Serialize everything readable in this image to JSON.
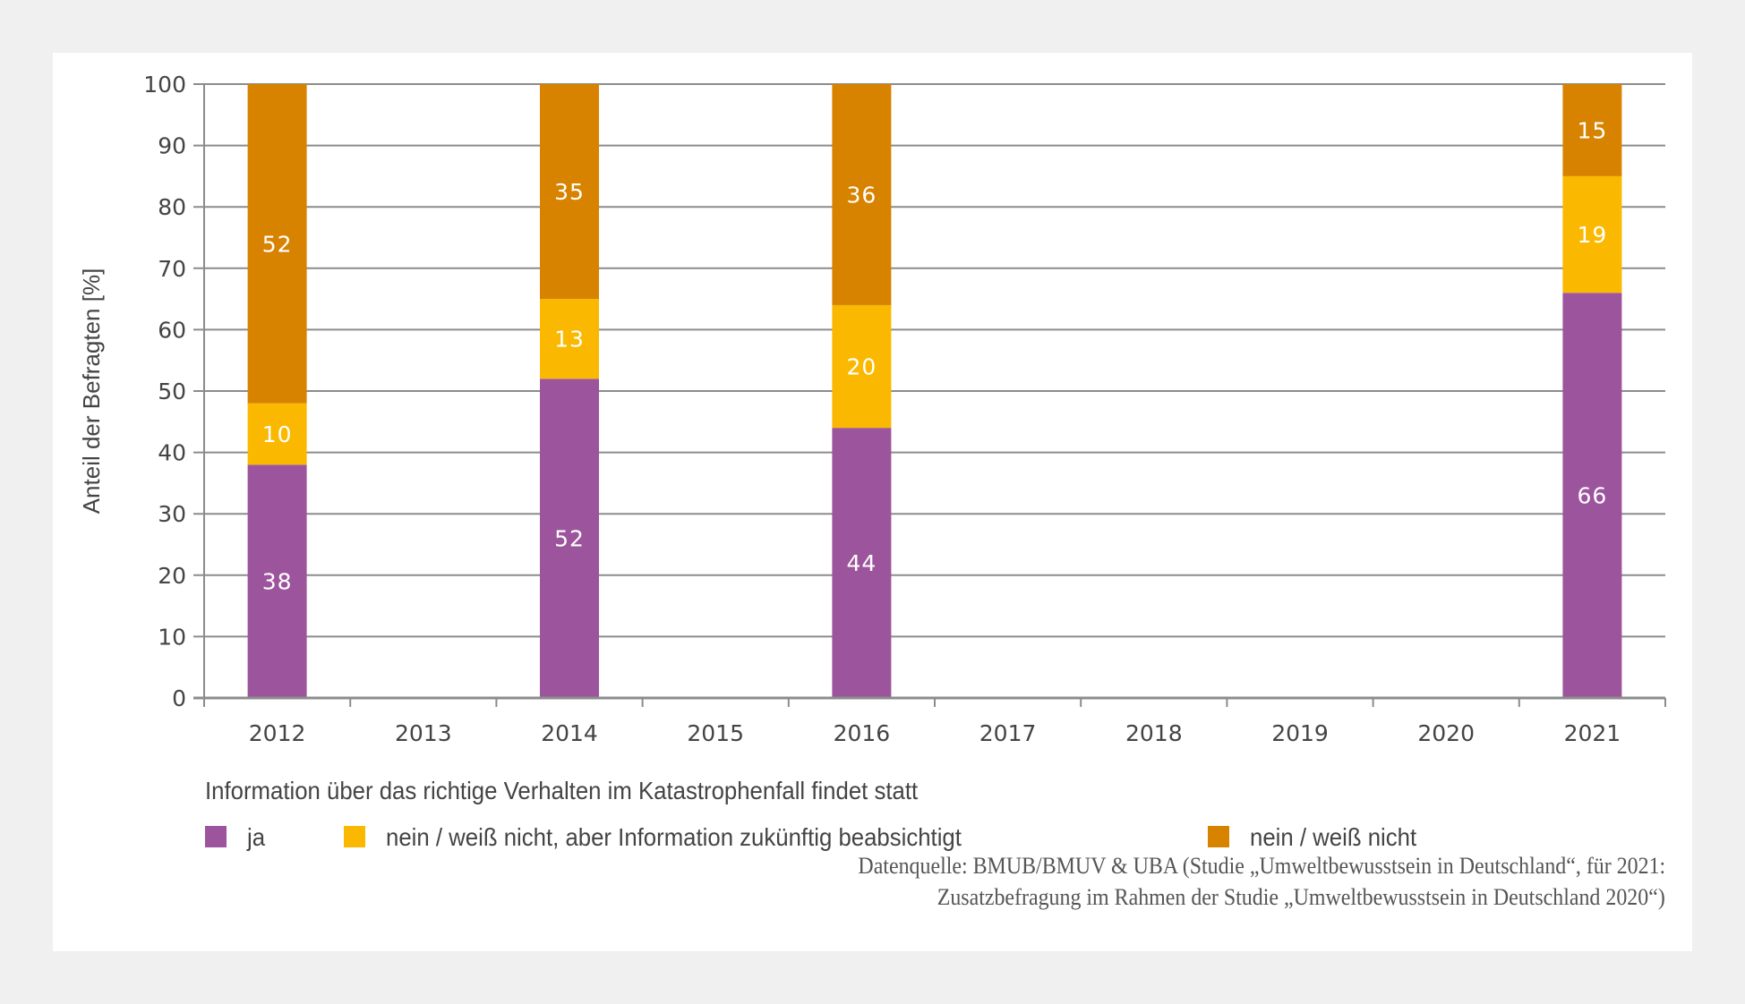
{
  "chart_data": {
    "type": "bar",
    "stacked": true,
    "title": "",
    "xlabel": "",
    "ylabel": "Anteil der Befragten [%]",
    "ylim": [
      0,
      100
    ],
    "yticks": [
      0,
      10,
      20,
      30,
      40,
      50,
      60,
      70,
      80,
      90,
      100
    ],
    "grid": true,
    "categories": [
      "2012",
      "2013",
      "2014",
      "2015",
      "2016",
      "2017",
      "2018",
      "2019",
      "2020",
      "2021"
    ],
    "series": [
      {
        "name": "ja",
        "color": "#9c559c",
        "values": [
          38,
          null,
          52,
          null,
          44,
          null,
          null,
          null,
          null,
          66
        ]
      },
      {
        "name": "nein / weiß nicht, aber Information zukünftig beabsichtigt",
        "color": "#fab800",
        "values": [
          10,
          null,
          13,
          null,
          20,
          null,
          null,
          null,
          null,
          19
        ]
      },
      {
        "name": "nein / weiß nicht",
        "color": "#d78300",
        "values": [
          52,
          null,
          35,
          null,
          36,
          null,
          null,
          null,
          null,
          15
        ]
      }
    ],
    "legend_title": "Information über das richtige Verhalten im Katastrophenfall findet statt",
    "legend_position": "bottom-left",
    "source_lines": [
      "Datenquelle: BMUB/BMUV & UBA (Studie „Umweltbewusstsein in Deutschland“, für 2021:",
      "Zusatzbefragung im Rahmen der Studie „Umweltbewusstsein in Deutschland 2020“)"
    ]
  },
  "colors": {
    "background": "#f0f0f0",
    "panel": "#ffffff",
    "grid": "#8c8c8c",
    "text": "#444444"
  }
}
